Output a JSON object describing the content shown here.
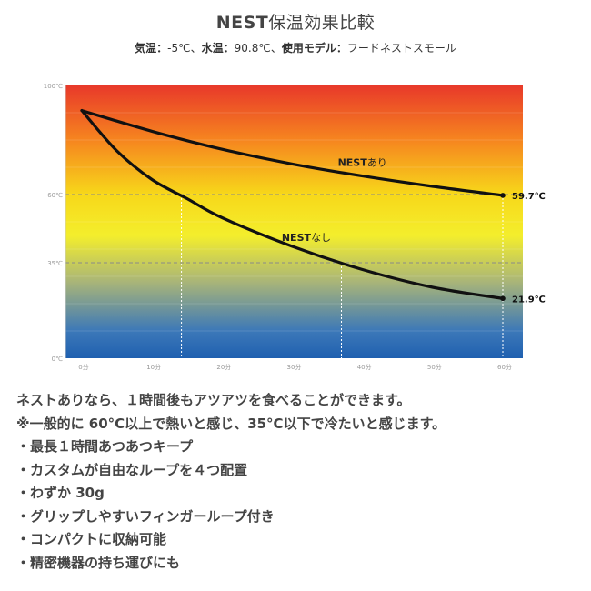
{
  "header": {
    "title_brand": "NEST",
    "title_rest": "保温効果比較",
    "temp_label": "気温：",
    "temp_value": "-5℃、",
    "water_label": "水温：",
    "water_value": "90.8℃、",
    "model_label": "使用モデル：",
    "model_value": "フードネストスモール"
  },
  "chart_data": {
    "type": "line",
    "title": "NEST保温効果比較",
    "xlabel": "",
    "ylabel": "",
    "xlim": [
      0,
      60
    ],
    "ylim": [
      0,
      100
    ],
    "x_ticks": [
      0,
      10,
      20,
      30,
      40,
      50,
      60
    ],
    "x_tick_labels": [
      "0分",
      "10分",
      "20分",
      "30分",
      "40分",
      "50分",
      "60分"
    ],
    "y_ticks": [
      0,
      35,
      60,
      100
    ],
    "y_tick_labels": [
      "0℃",
      "35℃",
      "60℃",
      "100℃"
    ],
    "background": "vertical temperature gradient (red top to blue bottom)",
    "gradient_colors": [
      "#e8392a",
      "#f6851f",
      "#f7d81a",
      "#f4ee2c",
      "#a9b578",
      "#3c78b8",
      "#1f60b0"
    ],
    "reference_lines_y": [
      35,
      60
    ],
    "series": [
      {
        "name": "NESTあり",
        "x": [
          0,
          10,
          20,
          30,
          40,
          50,
          60
        ],
        "y": [
          90.8,
          83.2,
          76.6,
          71.2,
          66.8,
          63.0,
          59.7
        ],
        "end_label": "59.7℃",
        "color": "#111111"
      },
      {
        "name": "NESTなし",
        "x": [
          0,
          5,
          10,
          15,
          20,
          30,
          40,
          50,
          60
        ],
        "y": [
          90.8,
          76.0,
          65.5,
          58.5,
          51.5,
          41.0,
          32.5,
          26.0,
          21.9
        ],
        "end_label": "21.9℃",
        "color": "#111111"
      }
    ],
    "guide_lines": [
      {
        "series": "NESTなし",
        "y": 60,
        "x": 14.2
      },
      {
        "series": "NESTなし",
        "y": 35,
        "x": 37.0
      },
      {
        "series": "NESTあり",
        "y": 60,
        "x": 60
      }
    ]
  },
  "notes": [
    "ネストありなら、１時間後もアツアツを食べることができます。",
    "※一般的に 60°C以上で熱いと感じ、35°C以下で冷たいと感じます。",
    "・最長１時間あつあつキープ",
    "・カスタムが自由なループを４つ配置",
    "・わずか 30g",
    "・グリップしやすいフィンガーループ付き",
    "・コンパクトに収納可能",
    "・精密機器の持ち運びにも"
  ]
}
